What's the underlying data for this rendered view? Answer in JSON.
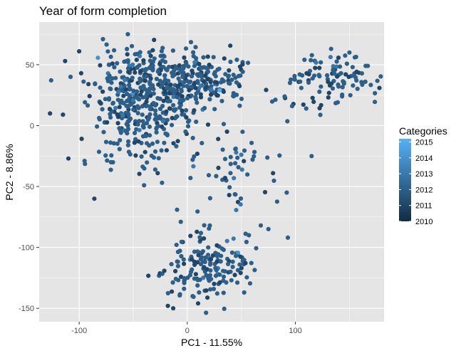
{
  "colors": {
    "panel_bg": "#E5E5E5",
    "grid_major": "#FFFFFF",
    "point_low": "#132B43",
    "point_high": "#56B1F7"
  },
  "chart_data": {
    "type": "scatter",
    "title": "Year of form completion",
    "xlabel": "PC1 - 11.55%",
    "ylabel": "PC2 - 8.86%",
    "xlim": [
      -137,
      182
    ],
    "ylim": [
      -161,
      85
    ],
    "x_ticks": [
      -100,
      0,
      100
    ],
    "y_ticks": [
      -150,
      -100,
      -50,
      0,
      50
    ],
    "grid": true,
    "legend": {
      "title": "Categories",
      "position": "right",
      "range": [
        2010,
        2015.2
      ],
      "ticks": [
        2010,
        2011,
        2012,
        2013,
        2014,
        2015
      ]
    },
    "clusters": [
      {
        "x_center": -35,
        "y_center": 30,
        "x_spread": 26,
        "y_spread": 17,
        "count": 380
      },
      {
        "x_center": 20,
        "y_center": 40,
        "x_spread": 18,
        "y_spread": 12,
        "count": 130
      },
      {
        "x_center": -45,
        "y_center": -5,
        "x_spread": 20,
        "y_spread": 16,
        "count": 120
      },
      {
        "x_center": 20,
        "y_center": -115,
        "x_spread": 20,
        "y_spread": 14,
        "count": 160
      },
      {
        "x_center": 145,
        "y_center": 40,
        "x_spread": 16,
        "y_spread": 9,
        "count": 60
      },
      {
        "x_center": 115,
        "y_center": 30,
        "x_spread": 16,
        "y_spread": 12,
        "count": 40
      },
      {
        "x_center": 45,
        "y_center": -35,
        "x_spread": 22,
        "y_spread": 20,
        "count": 50
      }
    ],
    "points": [
      {
        "x": -127,
        "y": 10,
        "year": 2011
      },
      {
        "x": -115,
        "y": 9,
        "year": 2011
      },
      {
        "x": -113,
        "y": 53,
        "year": 2011
      },
      {
        "x": -110,
        "y": -27,
        "year": 2011
      },
      {
        "x": -108,
        "y": 40,
        "year": 2012
      },
      {
        "x": -100,
        "y": 61,
        "year": 2011
      },
      {
        "x": -95,
        "y": -29,
        "year": 2012
      },
      {
        "x": -86,
        "y": -60,
        "year": 2011
      },
      {
        "x": -78,
        "y": 71,
        "year": 2012
      },
      {
        "x": -55,
        "y": 75,
        "year": 2012
      },
      {
        "x": -40,
        "y": -49,
        "year": 2012
      },
      {
        "x": 5,
        "y": -28,
        "year": 2012
      },
      {
        "x": 30,
        "y": 29,
        "year": 2015
      },
      {
        "x": 50,
        "y": -24,
        "year": 2013
      },
      {
        "x": 57,
        "y": -90,
        "year": 2012
      },
      {
        "x": 68,
        "y": -82,
        "year": 2012
      },
      {
        "x": 75,
        "y": -85,
        "year": 2012
      },
      {
        "x": 92,
        "y": -55,
        "year": 2012
      },
      {
        "x": 93,
        "y": -92,
        "year": 2012
      },
      {
        "x": 97,
        "y": 16,
        "year": 2012
      },
      {
        "x": 104,
        "y": 42,
        "year": 2012
      },
      {
        "x": 110,
        "y": 14,
        "year": 2012
      },
      {
        "x": 115,
        "y": -25,
        "year": 2012
      },
      {
        "x": 133,
        "y": 63,
        "year": 2012
      },
      {
        "x": 150,
        "y": 60,
        "year": 2012
      },
      {
        "x": 155,
        "y": 56,
        "year": 2012
      },
      {
        "x": 165,
        "y": 49,
        "year": 2012
      },
      {
        "x": 167,
        "y": 49,
        "year": 2012
      },
      {
        "x": -18,
        "y": -148,
        "year": 2011
      },
      {
        "x": -13,
        "y": -150,
        "year": 2011
      },
      {
        "x": 10,
        "y": -146,
        "year": 2011
      },
      {
        "x": 5,
        "y": -140,
        "year": 2012
      },
      {
        "x": -3,
        "y": -134,
        "year": 2012
      },
      {
        "x": 22,
        "y": -126,
        "year": 2012
      },
      {
        "x": 42,
        "y": -116,
        "year": 2012
      },
      {
        "x": 40,
        "y": -120,
        "year": 2012
      },
      {
        "x": 45,
        "y": -107,
        "year": 2012
      }
    ]
  }
}
